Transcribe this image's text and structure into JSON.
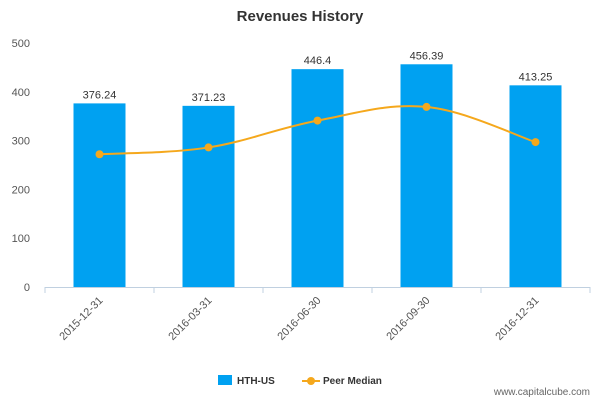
{
  "chart_data": {
    "type": "bar",
    "title": "Revenues History",
    "categories": [
      "2015-12-31",
      "2016-03-31",
      "2016-06-30",
      "2016-09-30",
      "2016-12-31"
    ],
    "series": [
      {
        "name": "HTH-US",
        "type": "bar",
        "color": "#00a1f1",
        "values": [
          376.24,
          371.23,
          446.4,
          456.39,
          413.25
        ],
        "labels": [
          "376.24",
          "371.23",
          "446.4",
          "456.39",
          "413.25"
        ]
      },
      {
        "name": "Peer Median",
        "type": "line",
        "color": "#f5a81c",
        "values": [
          272,
          286,
          341,
          369,
          297
        ]
      }
    ],
    "yticks": [
      "0",
      "100",
      "200",
      "300",
      "400",
      "500"
    ],
    "ylim": [
      0,
      500
    ],
    "grid": false,
    "legend_position": "bottom-center"
  },
  "credit": "www.capitalcube.com"
}
